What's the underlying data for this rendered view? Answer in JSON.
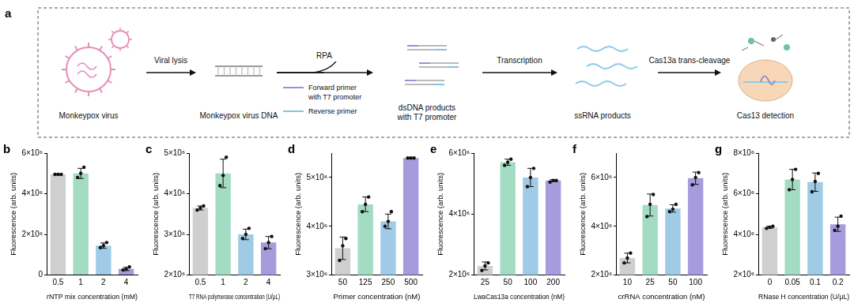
{
  "diagram": {
    "panel": "a",
    "items": [
      {
        "label": [
          "Monkeypox virus"
        ]
      },
      {
        "label": [
          "Monkeypox virus DNA"
        ]
      },
      {
        "label": [
          "dsDNA products",
          "with T7 promoter"
        ]
      },
      {
        "label": [
          "ssRNA products"
        ]
      },
      {
        "label": [
          "Cas13 detection"
        ]
      }
    ],
    "arrows": [
      {
        "label": [
          "Viral lysis"
        ]
      },
      {
        "label": [
          "RPA"
        ]
      },
      {
        "label": [
          "Transcription"
        ]
      },
      {
        "label": [
          "Cas13a trans-cleavage"
        ]
      }
    ],
    "primers": [
      {
        "label": [
          "Forward primer",
          "with T7 promoter"
        ]
      },
      {
        "label": [
          "Reverse primer"
        ]
      }
    ]
  },
  "chart_data": [
    {
      "type": "bar",
      "panel": "b",
      "x_label": "rNTP mix concentration (mM)",
      "y_label": "Fluorescence (arb. units)",
      "categories": [
        "0.5",
        "1",
        "2",
        "4"
      ],
      "values": [
        4950000,
        5000000,
        1450000,
        300000
      ],
      "errors": [
        20000,
        250000,
        130000,
        80000
      ],
      "points": [
        [
          4950000,
          4950000,
          4950000
        ],
        [
          4800000,
          5000000,
          5300000
        ],
        [
          1350000,
          1450000,
          1600000
        ],
        [
          250000,
          300000,
          400000
        ]
      ],
      "colors": [
        "#cfcfcf",
        "#a3dcc3",
        "#9fcbe6",
        "#a69bdc"
      ],
      "ylim": [
        0,
        6000000
      ],
      "yticks": [
        0,
        {
          "value": 2000000,
          "label": "2×10⁶"
        },
        {
          "value": 4000000,
          "label": "4×10⁶"
        },
        {
          "value": 6000000,
          "label": "6×10⁶"
        }
      ],
      "grid": false
    },
    {
      "type": "bar",
      "panel": "c",
      "x_label": "T7 RNA polymerase concentration (U/μL)",
      "y_label": "Fluorescence (arb. units)",
      "categories": [
        "0.5",
        "1",
        "2",
        "4"
      ],
      "values": [
        3650000,
        4500000,
        3000000,
        2800000
      ],
      "errors": [
        50000,
        350000,
        130000,
        150000
      ],
      "points": [
        [
          3600000,
          3650000,
          3700000
        ],
        [
          4200000,
          4450000,
          4900000
        ],
        [
          2900000,
          3000000,
          3150000
        ],
        [
          2650000,
          2800000,
          2950000
        ]
      ],
      "colors": [
        "#cfcfcf",
        "#a3dcc3",
        "#9fcbe6",
        "#a69bdc"
      ],
      "ylim": [
        2000000,
        5000000
      ],
      "yticks": [
        {
          "value": 2000000,
          "label": "2×10⁶"
        },
        {
          "value": 3000000,
          "label": "3×10⁶"
        },
        {
          "value": 4000000,
          "label": "4×10⁶"
        },
        {
          "value": 5000000,
          "label": "5×10⁶"
        }
      ],
      "grid": false
    },
    {
      "type": "bar",
      "panel": "d",
      "x_label": "Primer concentration (nM)",
      "y_label": "Fluorescence (arb. units)",
      "categories": [
        "50",
        "125",
        "250",
        "500"
      ],
      "values": [
        3550000,
        4450000,
        4100000,
        5400000
      ],
      "errors": [
        230000,
        150000,
        150000,
        10000
      ],
      "points": [
        [
          3300000,
          3600000,
          3750000
        ],
        [
          4300000,
          4450000,
          4600000
        ],
        [
          4000000,
          4100000,
          4300000
        ],
        [
          5400000,
          5400000,
          5400000
        ]
      ],
      "colors": [
        "#cfcfcf",
        "#a3dcc3",
        "#9fcbe6",
        "#a69bdc"
      ],
      "ylim": [
        3000000,
        5500000
      ],
      "yticks": [
        {
          "value": 3000000,
          "label": "3×10⁶"
        },
        {
          "value": 4000000,
          "label": "4×10⁶"
        },
        {
          "value": 5000000,
          "label": "5×10⁶"
        }
      ],
      "grid": false
    },
    {
      "type": "bar",
      "panel": "e",
      "x_label": "LwaCas13a concentration (nM)",
      "y_label": "Fluorescence (arb. units)",
      "categories": [
        "25",
        "50",
        "100",
        "200"
      ],
      "values": [
        2300000,
        5700000,
        5200000,
        5100000
      ],
      "errors": [
        130000,
        100000,
        300000,
        30000
      ],
      "points": [
        [
          2150000,
          2300000,
          2400000
        ],
        [
          5600000,
          5700000,
          5800000
        ],
        [
          4900000,
          5200000,
          5500000
        ],
        [
          5050000,
          5100000,
          5100000
        ]
      ],
      "colors": [
        "#cfcfcf",
        "#a3dcc3",
        "#9fcbe6",
        "#a69bdc"
      ],
      "ylim": [
        2000000,
        6000000
      ],
      "yticks": [
        {
          "value": 2000000,
          "label": "2×10⁶"
        },
        {
          "value": 4000000,
          "label": "4×10⁶"
        },
        {
          "value": 6000000,
          "label": "6×10⁶"
        }
      ],
      "grid": false
    },
    {
      "type": "bar",
      "panel": "f",
      "x_label": "crRNA concentration (nM)",
      "y_label": "Fluorescence (arb. units)",
      "categories": [
        "10",
        "25",
        "50",
        "100"
      ],
      "values": [
        2700000,
        4870000,
        4730000,
        5970000
      ],
      "errors": [
        200000,
        450000,
        150000,
        250000
      ],
      "points": [
        [
          2500000,
          2700000,
          2900000
        ],
        [
          4400000,
          4900000,
          5300000
        ],
        [
          4600000,
          4700000,
          4900000
        ],
        [
          5700000,
          6000000,
          6200000
        ]
      ],
      "colors": [
        "#cfcfcf",
        "#a3dcc3",
        "#9fcbe6",
        "#a69bdc"
      ],
      "ylim": [
        2000000,
        7000000
      ],
      "yticks": [
        {
          "value": 2000000,
          "label": "2×10⁶"
        },
        {
          "value": 4000000,
          "label": "4×10⁶"
        },
        {
          "value": 6000000,
          "label": "6×10⁶"
        }
      ],
      "grid": false
    },
    {
      "type": "bar",
      "panel": "g",
      "x_label": "RNase H concentration (U/μL)",
      "y_label": "Fluorescence (arb. units)",
      "categories": [
        "0",
        "0.05",
        "0.1",
        "0.2"
      ],
      "values": [
        4350000,
        6700000,
        6570000,
        4500000
      ],
      "errors": [
        50000,
        500000,
        450000,
        350000
      ],
      "points": [
        [
          4300000,
          4350000,
          4400000
        ],
        [
          6200000,
          6700000,
          7200000
        ],
        [
          6100000,
          6600000,
          7000000
        ],
        [
          4200000,
          4400000,
          4900000
        ]
      ],
      "colors": [
        "#cfcfcf",
        "#a3dcc3",
        "#9fcbe6",
        "#a69bdc"
      ],
      "ylim": [
        2000000,
        8000000
      ],
      "yticks": [
        {
          "value": 2000000,
          "label": "2×10⁶"
        },
        {
          "value": 4000000,
          "label": "4×10⁶"
        },
        {
          "value": 6000000,
          "label": "6×10⁶"
        },
        {
          "value": 8000000,
          "label": "8×10⁶"
        }
      ],
      "grid": false
    }
  ]
}
